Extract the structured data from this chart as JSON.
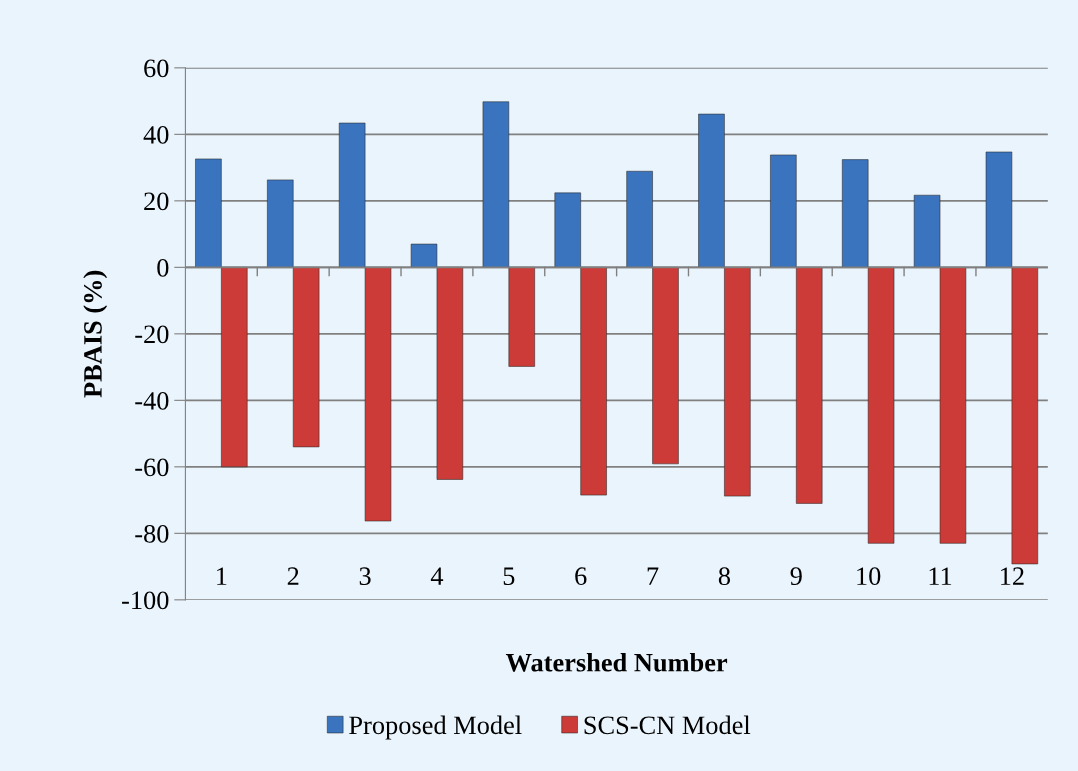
{
  "chart_data": {
    "type": "bar",
    "xlabel": "Watershed Number",
    "ylabel": "PBAIS (%)",
    "categories": [
      "1",
      "2",
      "3",
      "4",
      "5",
      "6",
      "7",
      "8",
      "9",
      "10",
      "11",
      "12"
    ],
    "series": [
      {
        "name": "Proposed Model",
        "color": "#3a74be",
        "values": [
          32.6,
          26.3,
          43.4,
          7,
          49.8,
          22.4,
          28.9,
          46.1,
          33.8,
          32.4,
          21.7,
          34.7
        ]
      },
      {
        "name": "SCS-CN Model",
        "color": "#cc3b37",
        "values": [
          -60,
          -54,
          -76.3,
          -63.8,
          -29.8,
          -68.5,
          -59.1,
          -68.8,
          -71,
          -83,
          -83,
          -89.2
        ]
      }
    ],
    "ylim": [
      -100,
      60
    ],
    "yticks": [
      -100,
      -80,
      -60,
      -40,
      -20,
      0,
      20,
      40,
      60
    ],
    "grid": "y",
    "legend": "bottom"
  }
}
